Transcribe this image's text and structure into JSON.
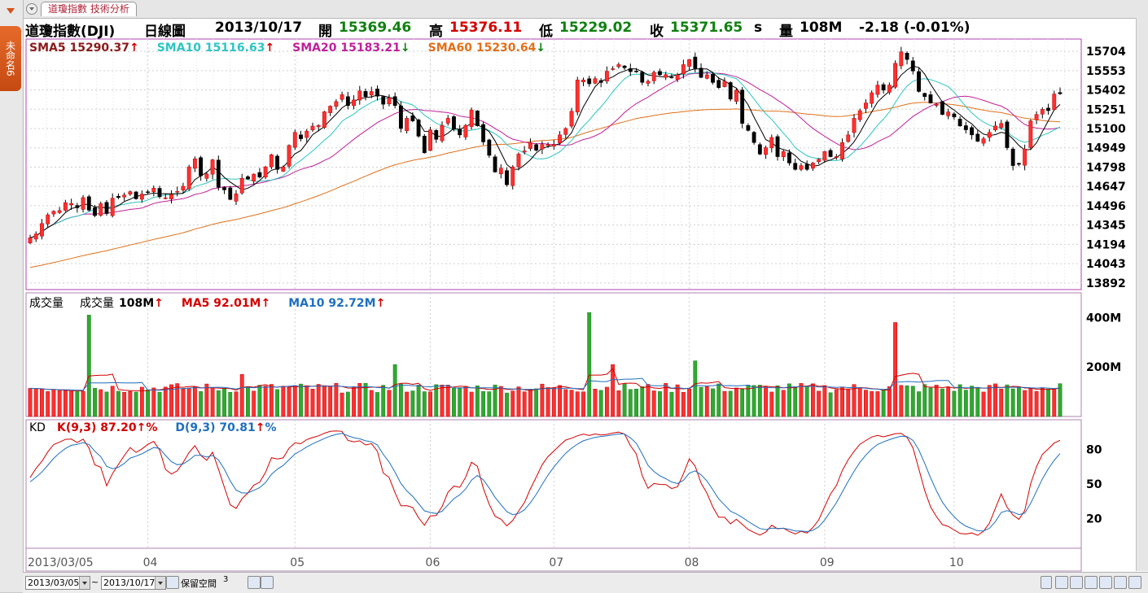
{
  "tab_label": "道瓊指數 技術分析",
  "side_tab_label": "未命名6",
  "header": {
    "name": "道瓊指數(DJI)",
    "period": "日線圖",
    "date": "2013/10/17",
    "open_label": "開",
    "open": "15369.46",
    "high_label": "高",
    "high": "15376.11",
    "low_label": "低",
    "low": "15229.02",
    "close_label": "收",
    "close": "15371.65",
    "close_suffix": "s",
    "vol_label": "量",
    "vol": "108M",
    "change": "-2.18 (-0.01%)"
  },
  "price_legend": [
    {
      "label": "SMA5 15290.37",
      "color": "#8b1a1a",
      "arrow": "↑",
      "arrow_color": "#d40000"
    },
    {
      "label": "SMA10 15116.63",
      "color": "#2ec4c4",
      "arrow": "↑",
      "arrow_color": "#d40000"
    },
    {
      "label": "SMA20 15183.21",
      "color": "#c0209a",
      "arrow": "↓",
      "arrow_color": "#108010"
    },
    {
      "label": "SMA60 15230.64",
      "color": "#e0701a",
      "arrow": "↓",
      "arrow_color": "#108010"
    }
  ],
  "volume_legend": {
    "title": "成交量",
    "vol_label": "成交量",
    "vol_value": "108M",
    "ma5": "MA5 92.01M",
    "ma10": "MA10 92.72M",
    "arrow": "↑"
  },
  "kd_legend": {
    "title": "KD",
    "k": "K(9,3) 87.20",
    "d": "D(9,3) 70.81",
    "arrow": "↑",
    "pct": "%"
  },
  "bottom_bar": {
    "start_date": "2013/03/05",
    "tilde": "~",
    "end_date": "2013/10/17",
    "reserve_label": "保留空間",
    "reserve_value": "3"
  },
  "chart_data": {
    "type": "candlestick",
    "price_axis_ticks": [
      15704,
      15553,
      15402,
      15251,
      15100,
      14949,
      14798,
      14647,
      14496,
      14345,
      14194,
      14043,
      13892
    ],
    "price_range": [
      13840,
      15800
    ],
    "volume_axis_ticks": [
      "400M",
      "200M"
    ],
    "volume_range": [
      0,
      500
    ],
    "kd_axis_ticks": [
      80,
      50,
      20
    ],
    "kd_range": [
      0,
      100
    ],
    "x_labels": [
      "2013/03/05",
      "04",
      "05",
      "06",
      "07",
      "08",
      "09",
      "10"
    ],
    "x_label_index": [
      0,
      20,
      45,
      68,
      89,
      112,
      135,
      157
    ],
    "closes": [
      14245,
      14275,
      14357,
      14425,
      14453,
      14458,
      14520,
      14513,
      14480,
      14560,
      14461,
      14419,
      14512,
      14435,
      14555,
      14560,
      14580,
      14606,
      14550,
      14587,
      14605,
      14634,
      14566,
      14558,
      14585,
      14608,
      14648,
      14800,
      14863,
      14730,
      14745,
      14855,
      14640,
      14620,
      14545,
      14589,
      14710,
      14705,
      14743,
      14720,
      14800,
      14895,
      14780,
      14800,
      14968,
      15070,
      15020,
      15080,
      15119,
      15125,
      15231,
      15275,
      15311,
      15365,
      15279,
      15324,
      15394,
      15350,
      15390,
      15353,
      15290,
      15340,
      15280,
      15100,
      15180,
      15160,
      15040,
      14910,
      15090,
      15015,
      15125,
      15180,
      15095,
      15050,
      15125,
      15245,
      15122,
      14995,
      14890,
      14760,
      14790,
      14660,
      14800,
      14900,
      14925,
      14990,
      14930,
      14975,
      14975,
      14975,
      15050,
      15100,
      15235,
      15480,
      15480,
      15450,
      15490,
      15460,
      15548,
      15568,
      15600,
      15575,
      15545,
      15543,
      15461,
      15470,
      15540,
      15520,
      15522,
      15500,
      15520,
      15600,
      15640,
      15570,
      15500,
      15520,
      15460,
      15420,
      15470,
      15330,
      15400,
      15140,
      15085,
      14990,
      14900,
      14950,
      15030,
      14880,
      14920,
      14830,
      14780,
      14810,
      14780,
      14830,
      14860,
      14920,
      14880,
      14880,
      14990,
      15050,
      15180,
      15240,
      15300,
      15380,
      15440,
      15400,
      15440,
      15610,
      15700,
      15640,
      15550,
      15390,
      15350,
      15300,
      15290,
      15210,
      15230,
      15190,
      15120,
      15090,
      15050,
      15000,
      15020,
      15070,
      15120,
      15140,
      14950,
      14810,
      14820,
      14940,
      15160,
      15210,
      15250,
      15240,
      15370,
      15372
    ],
    "sma_note": "SMA5, SMA10, SMA20, SMA60 overlays computed from closes"
  }
}
